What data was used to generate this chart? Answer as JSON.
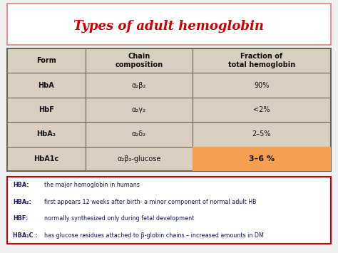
{
  "title": "Types of adult hemoglobin",
  "title_color": "#cc0000",
  "title_fontsize": 13,
  "bg_color": "#f0f0f0",
  "table_bg": "#d9cfc0",
  "table_border": "#666655",
  "highlight_color": "#f5a050",
  "header_row": [
    "Form",
    "Chain\ncomposition",
    "Fraction of\ntotal hemoglobin"
  ],
  "rows": [
    [
      "HbA",
      "α₂β₂",
      "90%"
    ],
    [
      "HbF",
      "α₂γ₂",
      "<2%"
    ],
    [
      "HbA₂",
      "α₂δ₂",
      "2–5%"
    ],
    [
      "HbA1c",
      "α₂β₂-glucose",
      "3–6 %"
    ]
  ],
  "notes": [
    [
      "HBA:",
      "the major hemoglobin in humans"
    ],
    [
      "HBA₂:",
      "first appears 12 weeks after birth- a minor component of normal adult HB"
    ],
    [
      "HBF:",
      "normally synthesized only during fetal development"
    ],
    [
      "HBA₁C :",
      "has glucose residues attached to β-globin chains – increased amounts in DM"
    ]
  ],
  "notes_text_color": "#1a1a5e",
  "notes_border": "#cc0000",
  "title_border": "#e08080"
}
